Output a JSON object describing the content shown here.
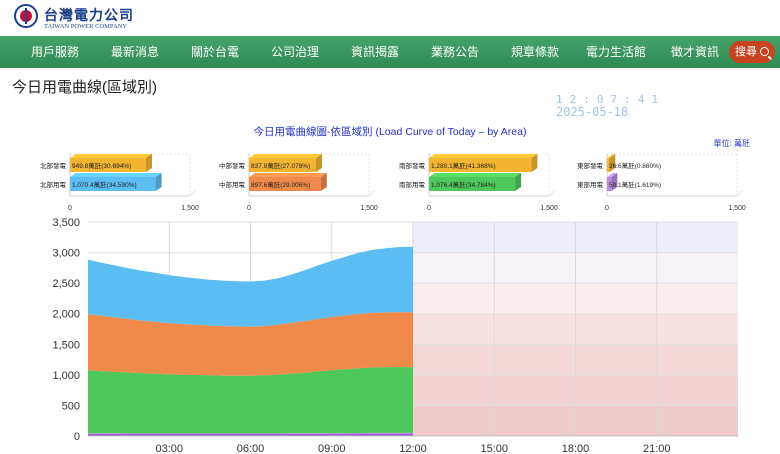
{
  "brand": {
    "name_cn": "台灣電力公司",
    "name_en": "TAIWAN POWER COMPANY"
  },
  "nav": {
    "items": [
      {
        "label": "用戶服務"
      },
      {
        "label": "最新消息"
      },
      {
        "label": "關於台電"
      },
      {
        "label": "公司治理"
      },
      {
        "label": "資訊揭露"
      },
      {
        "label": "業務公告"
      },
      {
        "label": "規章條款"
      },
      {
        "label": "電力生活館"
      },
      {
        "label": "徵才資訊"
      }
    ],
    "search_label": "搜尋",
    "search_icon": "search-icon"
  },
  "page": {
    "title": "今日用電曲線(區域別)",
    "clock": "12:07:41",
    "date": "2025-05-18",
    "chart_title": "今日用電曲線圖-依區域別 (Load Curve of Today – by Area)",
    "unit": "單位: 萬瓩"
  },
  "colors": {
    "nav_green": "#3a9a60",
    "search_red": "#c8431f",
    "title_blue": "#2230c8",
    "gen_orange": "#f2b431",
    "north_use": "#5bbdf2",
    "central_use": "#f08a4b",
    "south_use": "#4ec85a",
    "east_use": "#b98ce0"
  },
  "chart_data": [
    {
      "type": "bar",
      "region": "北部",
      "categories": [
        "北部發電",
        "北部用電"
      ],
      "values": [
        949.8,
        1070.4
      ],
      "data_labels": [
        "949.8萬瓩(30.694%)",
        "1,070.4萬瓩(34.590%)"
      ],
      "xlim": [
        0,
        1500
      ],
      "ticks": [
        "0",
        "1,500"
      ]
    },
    {
      "type": "bar",
      "region": "中部",
      "categories": [
        "中部發電",
        "中部用電"
      ],
      "values": [
        837.9,
        897.6
      ],
      "data_labels": [
        "837.9萬瓩(27.078%)",
        "897.6萬瓩(29.006%)"
      ],
      "xlim": [
        0,
        1500
      ],
      "ticks": [
        "0",
        "1,500"
      ]
    },
    {
      "type": "bar",
      "region": "南部",
      "categories": [
        "南部發電",
        "南部用電"
      ],
      "values": [
        1280.1,
        1076.4
      ],
      "data_labels": [
        "1,280.1萬瓩(41.368%)",
        "1,076.4萬瓩(34.784%)"
      ],
      "xlim": [
        0,
        1500
      ],
      "ticks": [
        "0",
        "1,500"
      ]
    },
    {
      "type": "bar",
      "region": "東部",
      "categories": [
        "東部發電",
        "東部用電"
      ],
      "values": [
        26.6,
        50.1
      ],
      "data_labels": [
        "26.6萬瓩(0.860%)",
        "50.1萬瓩(1.619%)"
      ],
      "xlim": [
        0,
        1500
      ],
      "ticks": [
        "0",
        "1,500"
      ]
    },
    {
      "type": "area",
      "stacked": true,
      "x": [
        "00:00",
        "00:30",
        "01:00",
        "01:30",
        "02:00",
        "02:30",
        "03:00",
        "03:30",
        "04:00",
        "04:30",
        "05:00",
        "05:30",
        "06:00",
        "06:30",
        "07:00",
        "07:30",
        "08:00",
        "08:30",
        "09:00",
        "09:30",
        "10:00",
        "10:30",
        "11:00",
        "11:30",
        "12:00"
      ],
      "x_ticks": [
        "03:00",
        "06:00",
        "09:00",
        "12:00",
        "15:00",
        "18:00",
        "21:00"
      ],
      "x_range": [
        "00:00",
        "24:00"
      ],
      "ylim": [
        0,
        3500
      ],
      "y_ticks": [
        "0",
        "500",
        "1,000",
        "1,500",
        "2,000",
        "2,500",
        "3,000",
        "3,500"
      ],
      "series": [
        {
          "values": [
            45,
            44,
            44,
            43,
            43,
            42,
            42,
            42,
            42,
            42,
            42,
            42,
            42,
            42,
            43,
            44,
            45,
            46,
            47,
            48,
            49,
            50,
            50,
            50,
            50
          ]
        },
        {
          "values": [
            1030,
            1015,
            1005,
            995,
            985,
            975,
            965,
            960,
            955,
            950,
            945,
            945,
            945,
            950,
            960,
            975,
            990,
            1010,
            1030,
            1045,
            1060,
            1070,
            1075,
            1078,
            1076
          ]
        },
        {
          "values": [
            920,
            905,
            890,
            875,
            860,
            850,
            840,
            830,
            820,
            815,
            810,
            805,
            800,
            805,
            815,
            830,
            845,
            860,
            870,
            880,
            888,
            893,
            896,
            898,
            898
          ]
        },
        {
          "values": [
            890,
            870,
            850,
            830,
            815,
            800,
            785,
            770,
            760,
            750,
            745,
            740,
            740,
            745,
            760,
            790,
            830,
            875,
            920,
            960,
            1000,
            1030,
            1050,
            1065,
            1070
          ]
        }
      ]
    }
  ]
}
